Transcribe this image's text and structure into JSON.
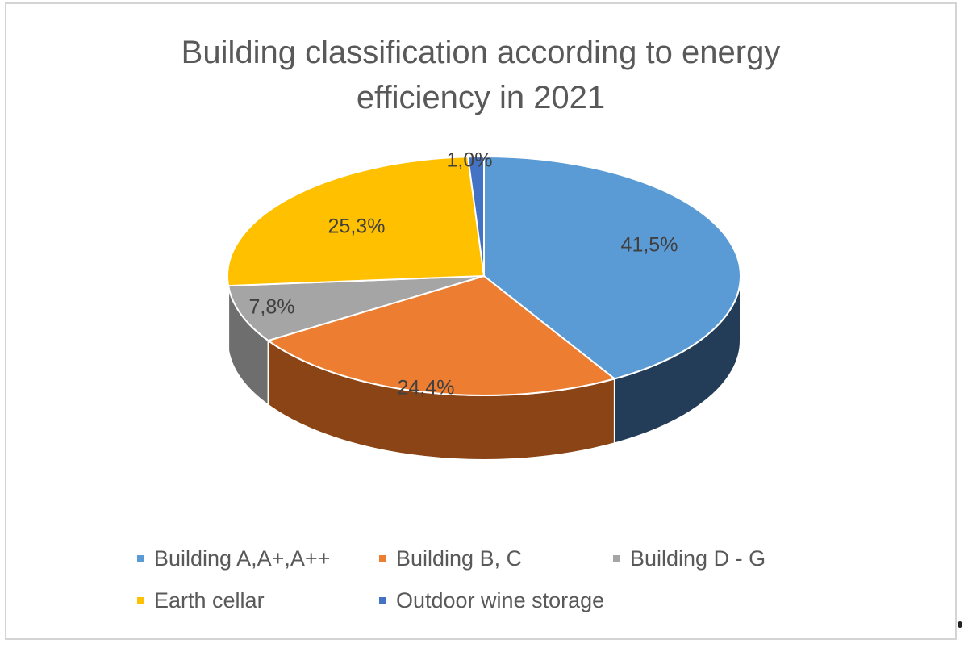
{
  "chart_data": {
    "type": "pie",
    "title_lines": [
      "Building classification according to energy",
      "efficiency in 2021"
    ],
    "categories": [
      "Building A,A+,A++",
      "Building B, C",
      "Building D - G",
      "Earth cellar",
      "Outdoor wine storage"
    ],
    "values": [
      41.5,
      24.4,
      7.8,
      25.3,
      1.0
    ],
    "labels": [
      "41,5%",
      "24,4%",
      "7,8%",
      "25,3%",
      "1,0%"
    ],
    "colors": [
      "#5b9bd5",
      "#ed7d31",
      "#a5a5a5",
      "#ffc000",
      "#4472c4"
    ],
    "side_colors": [
      "#233c57",
      "#8a4415",
      "#6e6e6e",
      "#b08400",
      "#2a4a86"
    ],
    "style": "3d",
    "legend_position": "bottom"
  }
}
